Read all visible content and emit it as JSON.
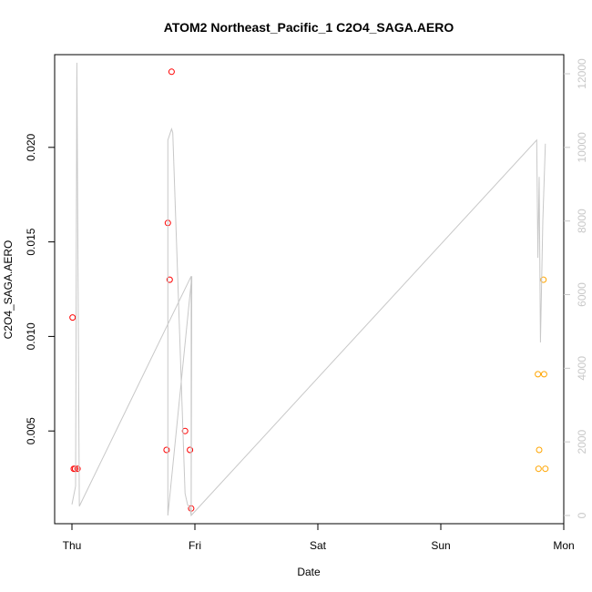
{
  "chart_data": {
    "type": "scatter",
    "title": "ATOM2 Northeast_Pacific_1 C2O4_SAGA.AERO",
    "xlabel": "Date",
    "ylabel": "C2O4_SAGA.AERO",
    "x_ticks": [
      "Thu",
      "Fri",
      "Sat",
      "Sun",
      "Mon"
    ],
    "x_tick_days": [
      0,
      1,
      2,
      3,
      4
    ],
    "xlim_days": [
      0,
      4
    ],
    "ylim": [
      0,
      0.025
    ],
    "y_ticks": [
      0.005,
      0.01,
      0.015,
      0.02
    ],
    "y_tick_labels": [
      "0.005",
      "0.010",
      "0.015",
      "0.020"
    ],
    "y2_ticks": [
      0,
      2000,
      4000,
      6000,
      8000,
      10000,
      12000
    ],
    "y2_tick_labels": [
      "0",
      "2000",
      "4000",
      "6000",
      "8000",
      "10000",
      "12000"
    ],
    "y2lim": [
      0,
      12500
    ],
    "grid": false,
    "colors": {
      "red": "#ff0000",
      "orange": "#ffa500",
      "altitude_line": "#c8c8c8"
    },
    "series": [
      {
        "color": "red",
        "x_days": [
          0.005,
          0.015,
          0.025,
          0.045,
          0.77,
          0.78,
          0.795,
          0.81,
          0.92,
          0.96,
          0.97
        ],
        "values": [
          0.011,
          0.003,
          0.003,
          0.003,
          0.004,
          0.016,
          0.013,
          0.024,
          0.005,
          0.004,
          0.0009
        ]
      },
      {
        "color": "orange",
        "x_days": [
          3.79,
          3.795,
          3.8,
          3.835,
          3.84,
          3.85
        ],
        "values": [
          0.008,
          0.003,
          0.004,
          0.013,
          0.008,
          0.003
        ]
      },
      {
        "type": "line",
        "axis": "right",
        "color": "altitude_line",
        "x_days": [
          0.0,
          0.03,
          0.04,
          0.06,
          0.97,
          0.97,
          0.975,
          0.78,
          0.78,
          0.8,
          0.81,
          0.82,
          0.92,
          0.94,
          0.96,
          0.97,
          3.78,
          3.79,
          3.8,
          3.81,
          3.83,
          3.85
        ],
        "values": [
          300,
          800,
          12300,
          250,
          6500,
          0,
          6500,
          0,
          10200,
          10400,
          10500,
          10400,
          600,
          300,
          200,
          0,
          10200,
          7000,
          9200,
          4700,
          8000,
          10100
        ]
      }
    ]
  }
}
